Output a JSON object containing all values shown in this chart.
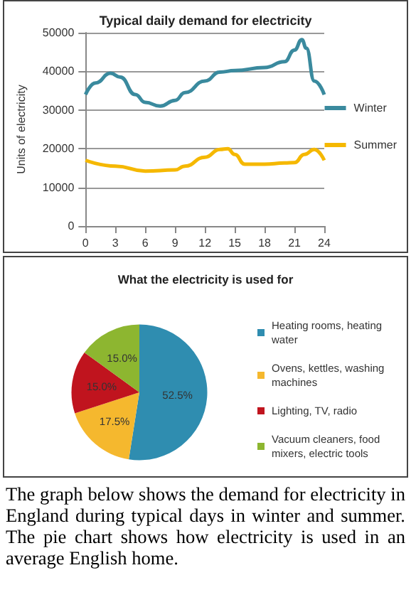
{
  "chart_data": [
    {
      "type": "line",
      "title": "Typical daily demand for electricity",
      "ylabel": "Units of electricity",
      "xlim": [
        0,
        24
      ],
      "xticks": [
        0,
        3,
        6,
        9,
        12,
        15,
        18,
        21,
        24
      ],
      "ylim": [
        0,
        50000
      ],
      "yticks": [
        0,
        10000,
        20000,
        30000,
        40000,
        50000
      ],
      "grid": "y",
      "legend": "right",
      "marker": "none",
      "line_style": "solid",
      "series": [
        {
          "name": "Winter",
          "color": "#3a8a9e",
          "x": [
            0,
            1,
            2.5,
            3.5,
            5,
            6,
            7.5,
            9,
            10,
            12,
            13.5,
            15,
            18,
            20,
            21,
            21.75,
            22.2,
            23,
            24
          ],
          "values": [
            34000,
            37000,
            39500,
            38500,
            34000,
            32000,
            31000,
            32500,
            34500,
            37500,
            39800,
            40200,
            41000,
            42500,
            45500,
            48200,
            46000,
            37500,
            34000
          ]
        },
        {
          "name": "Summer",
          "color": "#f5b800",
          "x": [
            0,
            3,
            6,
            9,
            10,
            12,
            13.5,
            14.3,
            15,
            16,
            18,
            20,
            21,
            22,
            23,
            24
          ],
          "values": [
            17000,
            15500,
            14200,
            14500,
            15500,
            17800,
            19800,
            20000,
            18500,
            16000,
            16000,
            16300,
            16400,
            18500,
            19800,
            17000
          ]
        }
      ]
    },
    {
      "type": "pie",
      "title": "What the electricity is used for",
      "categories": [
        "Heating rooms, heating water",
        "Ovens, kettles, washing machines",
        "Lighting, TV, radio",
        "Vacuum cleaners, food mixers, electric tools"
      ],
      "values": [
        52.5,
        17.5,
        15,
        15
      ],
      "colors": [
        "#2f8db0",
        "#f5b82e",
        "#c0141e",
        "#8db630"
      ],
      "value_labels": [
        "52.5%",
        "17.5%",
        "15.0%",
        "15.0%"
      ],
      "legend": "right",
      "annotations": [
        "The graph below shows the demand for electricity in England during typical days in winter and summer. The pie chart shows how electricity is used in an average English home."
      ]
    }
  ]
}
